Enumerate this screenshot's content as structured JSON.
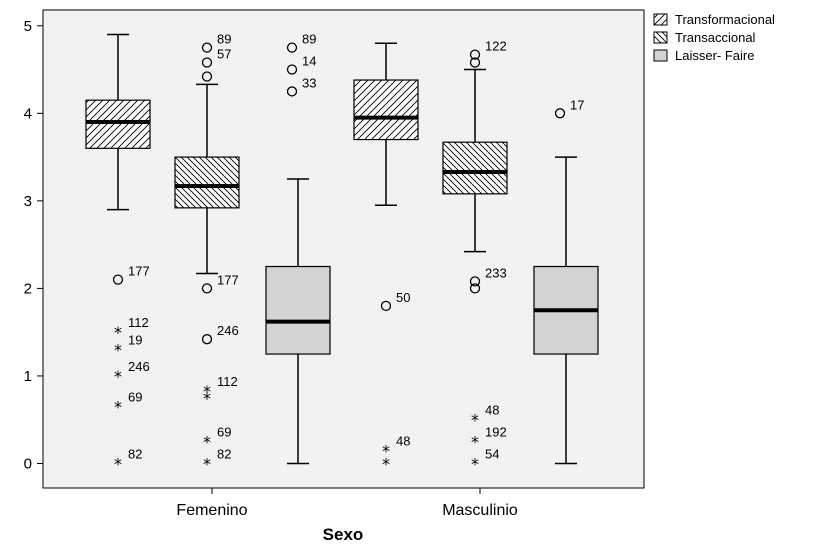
{
  "chart_data": {
    "type": "boxplot",
    "xlabel": "Sexo",
    "ylabel": "",
    "ylim": [
      -0.28,
      5.18
    ],
    "yticks": [
      0,
      1,
      2,
      3,
      4,
      5
    ],
    "categories": [
      "Femenino",
      "Masculinio"
    ],
    "legend": {
      "placement": "right"
    },
    "series": [
      {
        "name": "Transformacional",
        "fill": "#ffffff",
        "pattern": "diag-up",
        "boxes": [
          {
            "category": "Femenino",
            "whisker_low": 2.9,
            "q1": 3.6,
            "median": 3.9,
            "q3": 4.15,
            "whisker_high": 4.9,
            "outliers": [
              {
                "value": 2.1,
                "label": "177",
                "kind": "circle"
              }
            ],
            "extremes": [
              {
                "value": 1.5,
                "label": "112"
              },
              {
                "value": 1.3,
                "label": "19"
              },
              {
                "value": 1.0,
                "label": "246"
              },
              {
                "value": 0.65,
                "label": "69"
              },
              {
                "value": 0.0,
                "label": "82"
              }
            ]
          },
          {
            "category": "Masculinio",
            "whisker_low": 2.95,
            "q1": 3.7,
            "median": 3.95,
            "q3": 4.38,
            "whisker_high": 4.8,
            "outliers": [
              {
                "value": 1.8,
                "label": "50",
                "kind": "circle"
              }
            ],
            "extremes": [
              {
                "value": 0.15,
                "label": "48"
              },
              {
                "value": 0.0,
                "label": ""
              }
            ]
          }
        ]
      },
      {
        "name": "Transaccional",
        "fill": "#ffffff",
        "pattern": "diag-down",
        "boxes": [
          {
            "category": "Femenino",
            "whisker_low": 2.17,
            "q1": 2.92,
            "median": 3.17,
            "q3": 3.5,
            "whisker_high": 4.33,
            "outliers": [
              {
                "value": 4.75,
                "label": "89",
                "kind": "circle"
              },
              {
                "value": 4.58,
                "label": "57",
                "kind": "circle"
              },
              {
                "value": 4.42,
                "label": "",
                "kind": "circle"
              },
              {
                "value": 2.0,
                "label": "177",
                "kind": "circle"
              },
              {
                "value": 1.42,
                "label": "246",
                "kind": "circle"
              }
            ],
            "extremes": [
              {
                "value": 0.83,
                "label": "112"
              },
              {
                "value": 0.75,
                "label": ""
              },
              {
                "value": 0.25,
                "label": "69"
              },
              {
                "value": 0.0,
                "label": "82"
              }
            ]
          },
          {
            "category": "Masculinio",
            "whisker_low": 2.42,
            "q1": 3.08,
            "median": 3.33,
            "q3": 3.67,
            "whisker_high": 4.5,
            "outliers": [
              {
                "value": 4.67,
                "label": "122",
                "kind": "circle"
              },
              {
                "value": 4.58,
                "label": "",
                "kind": "circle"
              },
              {
                "value": 2.08,
                "label": "233",
                "kind": "circle"
              },
              {
                "value": 2.0,
                "label": "",
                "kind": "circle"
              }
            ],
            "extremes": [
              {
                "value": 0.5,
                "label": "48"
              },
              {
                "value": 0.25,
                "label": "192"
              },
              {
                "value": 0.0,
                "label": "54"
              }
            ]
          }
        ]
      },
      {
        "name": "Laisser- Faire",
        "fill": "#d3d3d3",
        "pattern": "solid",
        "boxes": [
          {
            "category": "Femenino",
            "whisker_low": 0.0,
            "q1": 1.25,
            "median": 1.62,
            "q3": 2.25,
            "whisker_high": 3.25,
            "outliers": [
              {
                "value": 4.75,
                "label": "89",
                "kind": "circle"
              },
              {
                "value": 4.5,
                "label": "14",
                "kind": "circle"
              },
              {
                "value": 4.25,
                "label": "33",
                "kind": "circle"
              }
            ],
            "extremes": []
          },
          {
            "category": "Masculinio",
            "whisker_low": 0.0,
            "q1": 1.25,
            "median": 1.75,
            "q3": 2.25,
            "whisker_high": 3.5,
            "outliers": [
              {
                "value": 4.0,
                "label": "17",
                "kind": "circle"
              }
            ],
            "extremes": []
          }
        ]
      }
    ]
  }
}
